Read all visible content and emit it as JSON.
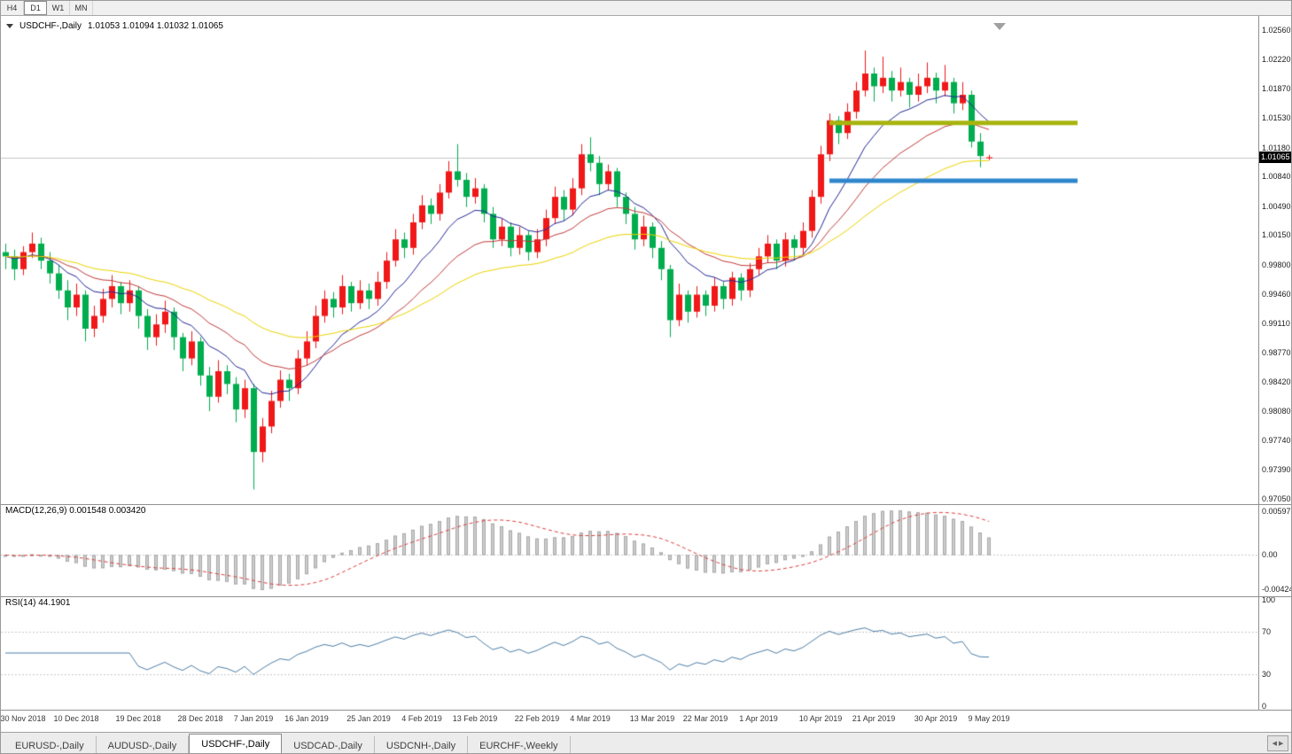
{
  "toolbar": {
    "timeframes": [
      {
        "label": "H4",
        "active": false
      },
      {
        "label": "D1",
        "active": true
      },
      {
        "label": "W1",
        "active": false
      },
      {
        "label": "MN",
        "active": false
      }
    ]
  },
  "main_chart": {
    "symbol_label": "USDCHF-,Daily",
    "ohlc_text": "1.01053 1.01094 1.01032 1.01065",
    "current_price_label": "1.01065",
    "price_axis_ticks": [
      "1.02560",
      "1.02220",
      "1.01870",
      "1.01530",
      "1.01180",
      "1.00840",
      "1.00490",
      "1.00150",
      "0.99800",
      "0.99460",
      "0.99110",
      "0.98770",
      "0.98420",
      "0.98080",
      "0.97740",
      "0.97390",
      "0.97050"
    ]
  },
  "macd_panel": {
    "label": "MACD(12,26,9) 0.001548 0.003420",
    "axis_ticks": [
      "0.00597",
      "0.00",
      "-0.00424"
    ]
  },
  "rsi_panel": {
    "label": "RSI(14) 44.1901",
    "axis_ticks": [
      "100",
      "70",
      "30",
      "0"
    ]
  },
  "date_axis": [
    {
      "text": "30 Nov 2018",
      "bar": 2
    },
    {
      "text": "10 Dec 2018",
      "bar": 8
    },
    {
      "text": "19 Dec 2018",
      "bar": 15
    },
    {
      "text": "28 Dec 2018",
      "bar": 22
    },
    {
      "text": "7 Jan 2019",
      "bar": 28
    },
    {
      "text": "16 Jan 2019",
      "bar": 34
    },
    {
      "text": "25 Jan 2019",
      "bar": 41
    },
    {
      "text": "4 Feb 2019",
      "bar": 47
    },
    {
      "text": "13 Feb 2019",
      "bar": 53
    },
    {
      "text": "22 Feb 2019",
      "bar": 60
    },
    {
      "text": "4 Mar 2019",
      "bar": 66
    },
    {
      "text": "13 Mar 2019",
      "bar": 73
    },
    {
      "text": "22 Mar 2019",
      "bar": 79
    },
    {
      "text": "1 Apr 2019",
      "bar": 85
    },
    {
      "text": "10 Apr 2019",
      "bar": 92
    },
    {
      "text": "21 Apr 2019",
      "bar": 98
    },
    {
      "text": "30 Apr 2019",
      "bar": 105
    },
    {
      "text": "9 May 2019",
      "bar": 111
    }
  ],
  "tabs": {
    "items": [
      {
        "label": "EURUSD-,Daily",
        "active": false
      },
      {
        "label": "AUDUSD-,Daily",
        "active": false
      },
      {
        "label": "USDCHF-,Daily",
        "active": true
      },
      {
        "label": "USDCAD-,Daily",
        "active": false
      },
      {
        "label": "USDCNH-,Daily",
        "active": false
      },
      {
        "label": "EURCHF-,Weekly",
        "active": false
      }
    ]
  },
  "colors": {
    "up_candle": "#f01818",
    "down_candle": "#00ad4e",
    "ma_fast": "#242896",
    "ma_mid": "#c23b3b",
    "ma_slow": "#ecd400",
    "macd_hist_fill": "#cdcdcd",
    "macd_hist_edge": "#a8a8a8",
    "macd_signal": "#e04040",
    "rsi_line": "#4f7fa8",
    "resistance_line": "#a8b40f",
    "support_line": "#2e86cc",
    "bid_line": "#c6c6c6"
  },
  "chart_data": {
    "type": "candlestick",
    "symbol": "USDCHF",
    "timeframe": "Daily",
    "title": "USDCHF-,Daily",
    "price_range": [
      0.96987,
      1.02727
    ],
    "current_price": 1.01065,
    "ohlc": [
      [
        0.9995,
        1.0005,
        0.9975,
        0.999
      ],
      [
        0.999,
        0.9998,
        0.9962,
        0.9975
      ],
      [
        0.9975,
        1.0002,
        0.9968,
        0.9995
      ],
      [
        0.9995,
        1.0018,
        0.9988,
        1.0005
      ],
      [
        1.0005,
        1.0012,
        0.9975,
        0.9985
      ],
      [
        0.9985,
        0.9995,
        0.9958,
        0.997
      ],
      [
        0.997,
        0.998,
        0.994,
        0.995
      ],
      [
        0.995,
        0.9962,
        0.9915,
        0.993
      ],
      [
        0.993,
        0.9958,
        0.992,
        0.9945
      ],
      [
        0.9945,
        0.995,
        0.989,
        0.9905
      ],
      [
        0.9905,
        0.9932,
        0.9895,
        0.992
      ],
      [
        0.992,
        0.9952,
        0.9912,
        0.994
      ],
      [
        0.994,
        0.9968,
        0.993,
        0.9955
      ],
      [
        0.9955,
        0.996,
        0.9922,
        0.9935
      ],
      [
        0.9935,
        0.9962,
        0.9925,
        0.995
      ],
      [
        0.995,
        0.9955,
        0.9905,
        0.992
      ],
      [
        0.992,
        0.9928,
        0.988,
        0.9895
      ],
      [
        0.9895,
        0.9922,
        0.9885,
        0.991
      ],
      [
        0.991,
        0.9938,
        0.99,
        0.9925
      ],
      [
        0.9925,
        0.993,
        0.988,
        0.9895
      ],
      [
        0.9895,
        0.99,
        0.9855,
        0.987
      ],
      [
        0.987,
        0.9902,
        0.9862,
        0.989
      ],
      [
        0.989,
        0.9895,
        0.9838,
        0.985
      ],
      [
        0.985,
        0.986,
        0.9808,
        0.9825
      ],
      [
        0.9825,
        0.9868,
        0.9818,
        0.9855
      ],
      [
        0.9855,
        0.9862,
        0.9828,
        0.984
      ],
      [
        0.984,
        0.9848,
        0.9795,
        0.981
      ],
      [
        0.981,
        0.9845,
        0.98,
        0.9835
      ],
      [
        0.9835,
        0.984,
        0.9716,
        0.976
      ],
      [
        0.976,
        0.98,
        0.9748,
        0.979
      ],
      [
        0.979,
        0.9832,
        0.9782,
        0.982
      ],
      [
        0.982,
        0.9856,
        0.9812,
        0.9845
      ],
      [
        0.9845,
        0.9852,
        0.982,
        0.9835
      ],
      [
        0.9835,
        0.988,
        0.9828,
        0.987
      ],
      [
        0.987,
        0.9902,
        0.9862,
        0.989
      ],
      [
        0.989,
        0.9932,
        0.9882,
        0.992
      ],
      [
        0.992,
        0.995,
        0.9912,
        0.994
      ],
      [
        0.994,
        0.9948,
        0.9918,
        0.993
      ],
      [
        0.993,
        0.9968,
        0.9922,
        0.9955
      ],
      [
        0.9955,
        0.996,
        0.9925,
        0.9935
      ],
      [
        0.9935,
        0.9962,
        0.9928,
        0.995
      ],
      [
        0.995,
        0.9958,
        0.9928,
        0.994
      ],
      [
        0.994,
        0.9972,
        0.9932,
        0.996
      ],
      [
        0.996,
        0.9995,
        0.9952,
        0.9985
      ],
      [
        0.9985,
        1.0022,
        0.9978,
        1.001
      ],
      [
        1.001,
        1.0018,
        0.9988,
        1.0
      ],
      [
        1.0,
        1.004,
        0.9992,
        1.003
      ],
      [
        1.003,
        1.0062,
        1.0022,
        1.005
      ],
      [
        1.005,
        1.0058,
        1.0028,
        1.004
      ],
      [
        1.004,
        1.0075,
        1.0032,
        1.0065
      ],
      [
        1.0065,
        1.0102,
        1.0058,
        1.009
      ],
      [
        1.009,
        1.0122,
        1.0072,
        1.008
      ],
      [
        1.008,
        1.0088,
        1.0048,
        1.006
      ],
      [
        1.006,
        1.0082,
        1.0052,
        1.007
      ],
      [
        1.007,
        1.0075,
        1.003,
        1.004
      ],
      [
        1.004,
        1.0048,
        1.0,
        1.001
      ],
      [
        1.001,
        1.0035,
        1.0002,
        1.0025
      ],
      [
        1.0025,
        1.003,
        0.999,
        1.0
      ],
      [
        1.0,
        1.0025,
        0.9992,
        1.0015
      ],
      [
        1.0015,
        1.002,
        0.9985,
        0.9995
      ],
      [
        0.9995,
        1.0022,
        0.9988,
        1.001
      ],
      [
        1.001,
        1.0045,
        1.0002,
        1.0035
      ],
      [
        1.0035,
        1.0072,
        1.0028,
        1.006
      ],
      [
        1.006,
        1.0068,
        1.0032,
        1.0045
      ],
      [
        1.0045,
        1.0082,
        1.0038,
        1.007
      ],
      [
        1.007,
        1.0122,
        1.0062,
        1.011
      ],
      [
        1.011,
        1.013,
        1.009,
        1.01
      ],
      [
        1.01,
        1.0108,
        1.0062,
        1.0075
      ],
      [
        1.0075,
        1.0098,
        1.0068,
        1.009
      ],
      [
        1.009,
        1.0094,
        1.0048,
        1.006
      ],
      [
        1.006,
        1.0065,
        1.0028,
        1.004
      ],
      [
        1.004,
        1.0048,
        0.9998,
        1.001
      ],
      [
        1.001,
        1.0038,
        1.0002,
        1.0025
      ],
      [
        1.0025,
        1.003,
        0.9988,
        1.0
      ],
      [
        1.0,
        1.0008,
        0.9962,
        0.9975
      ],
      [
        0.9975,
        0.998,
        0.9895,
        0.9915
      ],
      [
        0.9915,
        0.9958,
        0.9908,
        0.9945
      ],
      [
        0.9945,
        0.995,
        0.9912,
        0.9925
      ],
      [
        0.9925,
        0.9955,
        0.9918,
        0.9945
      ],
      [
        0.9945,
        0.995,
        0.992,
        0.9932
      ],
      [
        0.9932,
        0.9965,
        0.9925,
        0.9955
      ],
      [
        0.9955,
        0.996,
        0.9928,
        0.994
      ],
      [
        0.994,
        0.9972,
        0.9932,
        0.9965
      ],
      [
        0.9965,
        0.997,
        0.9938,
        0.995
      ],
      [
        0.995,
        0.9982,
        0.9942,
        0.9975
      ],
      [
        0.9975,
        1.0,
        0.9968,
        0.999
      ],
      [
        0.999,
        1.0015,
        0.9982,
        1.0005
      ],
      [
        1.0005,
        1.001,
        0.9975,
        0.9985
      ],
      [
        0.9985,
        1.0018,
        0.9978,
        1.001
      ],
      [
        1.001,
        1.0015,
        0.9985,
        1.0
      ],
      [
        1.0,
        1.003,
        0.9992,
        1.002
      ],
      [
        1.002,
        1.0068,
        1.0012,
        1.006
      ],
      [
        1.006,
        1.012,
        1.0052,
        1.011
      ],
      [
        1.011,
        1.0158,
        1.0102,
        1.015
      ],
      [
        1.015,
        1.0155,
        1.0122,
        1.0135
      ],
      [
        1.0135,
        1.017,
        1.0128,
        1.016
      ],
      [
        1.016,
        1.0195,
        1.0152,
        1.0185
      ],
      [
        1.0185,
        1.0232,
        1.0178,
        1.0205
      ],
      [
        1.0205,
        1.0212,
        1.0172,
        1.019
      ],
      [
        1.019,
        1.0225,
        1.0182,
        1.02
      ],
      [
        1.02,
        1.0208,
        1.0172,
        1.0185
      ],
      [
        1.0185,
        1.0212,
        1.0178,
        1.0195
      ],
      [
        1.0195,
        1.02,
        1.0165,
        1.018
      ],
      [
        1.018,
        1.0205,
        1.0172,
        1.019
      ],
      [
        1.019,
        1.0218,
        1.0182,
        1.02
      ],
      [
        1.02,
        1.0206,
        1.017,
        1.0185
      ],
      [
        1.0185,
        1.0215,
        1.0178,
        1.0195
      ],
      [
        1.0195,
        1.02,
        1.0158,
        1.017
      ],
      [
        1.017,
        1.0195,
        1.0162,
        1.018
      ],
      [
        1.018,
        1.0185,
        1.0118,
        1.0125
      ],
      [
        1.0125,
        1.0135,
        1.0095,
        1.0108
      ],
      [
        1.01053,
        1.01094,
        1.01032,
        1.01065
      ]
    ],
    "moving_averages": [
      {
        "type": "ema",
        "period": 10,
        "color_key": "ma_fast"
      },
      {
        "type": "ema",
        "period": 20,
        "color_key": "ma_mid"
      },
      {
        "type": "ema",
        "period": 40,
        "color_key": "ma_slow"
      }
    ],
    "hlines": [
      {
        "price": 1.0147,
        "from_bar": 93,
        "to_bar": 121,
        "color_key": "resistance_line",
        "width": 5
      },
      {
        "price": 1.0079,
        "from_bar": 93,
        "to_bar": 121,
        "color_key": "support_line",
        "width": 5
      }
    ],
    "indicators": {
      "macd": {
        "fast": 12,
        "slow": 26,
        "signal": 9,
        "main_value": 0.001548,
        "signal_value": 0.00342
      },
      "rsi": {
        "period": 14,
        "value": 44.1901,
        "levels": [
          70,
          30
        ],
        "range": [
          0,
          100
        ]
      }
    }
  }
}
